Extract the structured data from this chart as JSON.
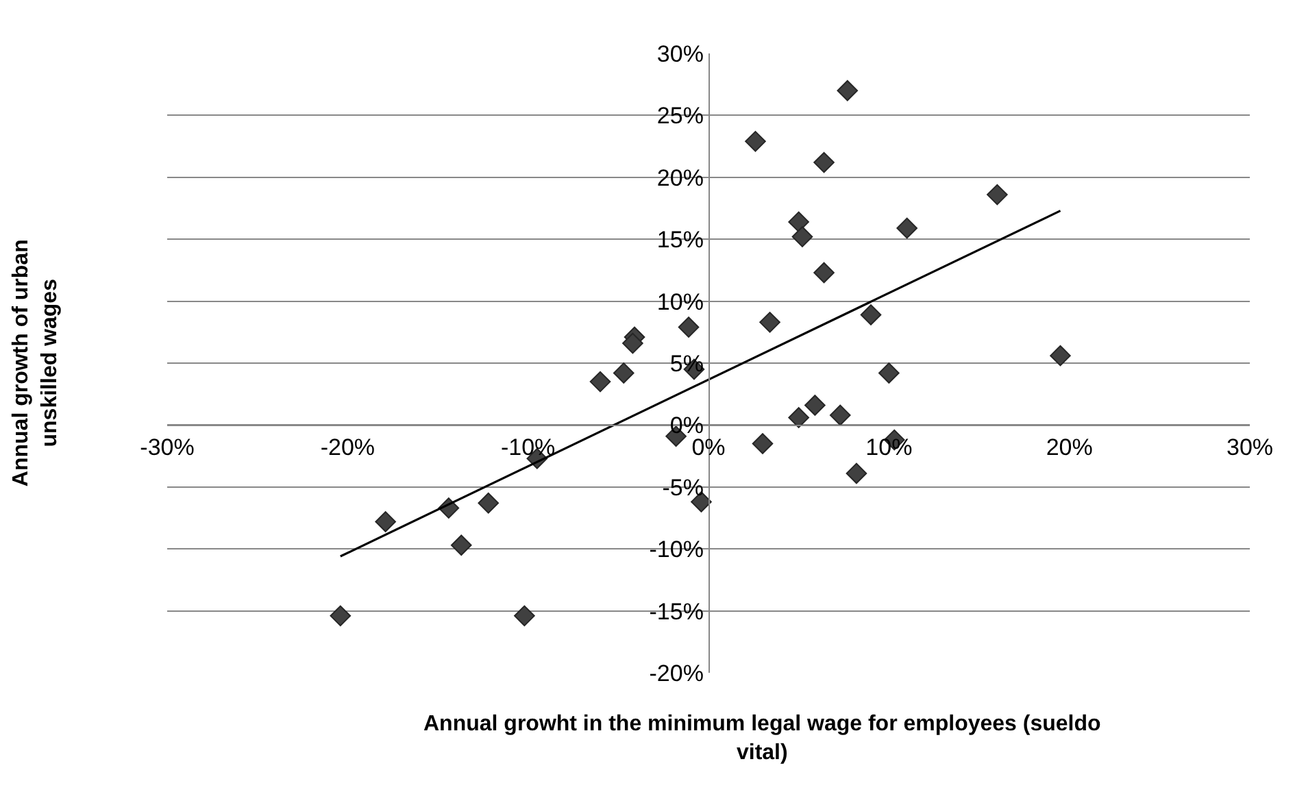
{
  "chart_data": {
    "type": "scatter",
    "xlabel": "Annual growht in the minimum legal wage for employees (sueldo vital)",
    "ylabel": "Annual growth of urban unskilled wages",
    "series": [
      {
        "color": "#404040",
        "marker": "diamond",
        "x": [
          -20.4,
          -17.9,
          -14.4,
          -13.7,
          -12.2,
          -10.2,
          -9.5,
          -6.0,
          -4.7,
          -4.1,
          -4.2,
          -1.1,
          -0.8,
          -1.8,
          -0.4,
          2.6,
          7.7,
          6.4,
          16.0,
          5.0,
          5.2,
          11.0,
          6.4,
          3.4,
          9.0,
          19.5,
          10.0,
          5.9,
          5.0,
          7.3,
          3.0,
          10.3,
          8.2
        ],
        "values": [
          -15.4,
          -7.8,
          -6.7,
          -9.7,
          -6.3,
          -15.4,
          -2.7,
          3.5,
          4.2,
          7.1,
          6.6,
          7.9,
          4.5,
          -0.9,
          -6.2,
          22.9,
          27.0,
          21.2,
          18.6,
          16.4,
          15.2,
          15.9,
          12.3,
          8.3,
          8.9,
          5.6,
          4.2,
          1.6,
          0.6,
          0.8,
          -1.5,
          -1.2,
          -3.9
        ]
      },
      {
        "type": "line",
        "color": "#000000",
        "marker": "none",
        "line_style": "solid",
        "x": [
          -20.4,
          19.5
        ],
        "values": [
          -10.6,
          17.3
        ]
      }
    ],
    "xlim": [
      -30,
      30
    ],
    "xticks": [
      {
        "value": -30,
        "label": "-30%"
      },
      {
        "value": -20,
        "label": "-20%"
      },
      {
        "value": -10,
        "label": "-10%"
      },
      {
        "value": 0,
        "label": "0%"
      },
      {
        "value": 10,
        "label": "10%"
      },
      {
        "value": 20,
        "label": "20%"
      },
      {
        "value": 30,
        "label": "30%"
      }
    ],
    "ylim": [
      -20,
      30
    ],
    "yticks": [
      {
        "value": -20,
        "label": "-20%"
      },
      {
        "value": -15,
        "label": "-15%"
      },
      {
        "value": -10,
        "label": "-10%"
      },
      {
        "value": -5,
        "label": "-5%"
      },
      {
        "value": 0,
        "label": "0%"
      },
      {
        "value": 5,
        "label": "5%"
      },
      {
        "value": 10,
        "label": "10%"
      },
      {
        "value": 15,
        "label": "15%"
      },
      {
        "value": 20,
        "label": "20%"
      },
      {
        "value": 25,
        "label": "25%"
      },
      {
        "value": 30,
        "label": "30%"
      }
    ],
    "grid": "y"
  }
}
